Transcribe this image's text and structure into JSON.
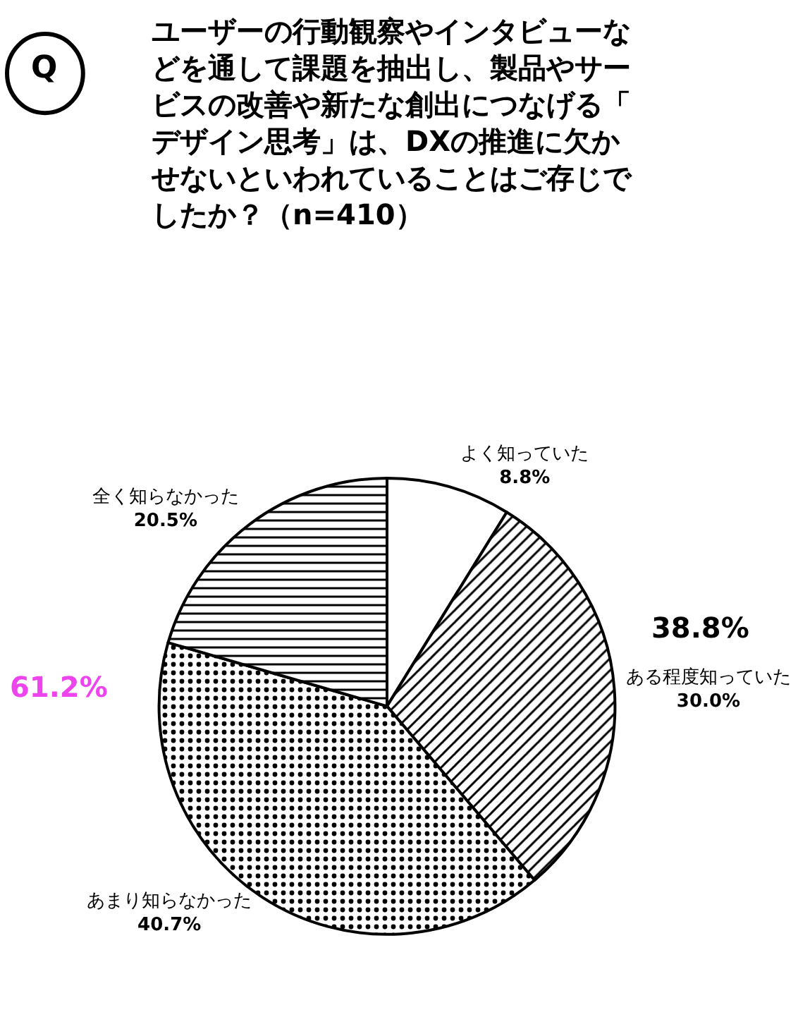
{
  "chart_data": {
    "type": "pie",
    "title": "ユーザーの行動観察やインタビューなどを通して課題を抽出し、製品やサービスの改善や新たな創出につなげる「デザイン思考」は、DXの推進に欠かせないといわれていることはご存じでしたか？（n=410）",
    "categories": [
      "よく知っていた",
      "ある程度知っていた",
      "あまり知らなかった",
      "全く知らなかった"
    ],
    "values": [
      8.8,
      30.0,
      40.7,
      20.5
    ],
    "value_labels": [
      "8.8%",
      "30.0%",
      "40.7%",
      "20.5%"
    ],
    "colors": [
      "#ffffff",
      "#000000",
      "#000000",
      "#000000"
    ],
    "annotations": [
      "Q",
      "38.8%",
      "61.2%"
    ],
    "legend": false
  }
}
